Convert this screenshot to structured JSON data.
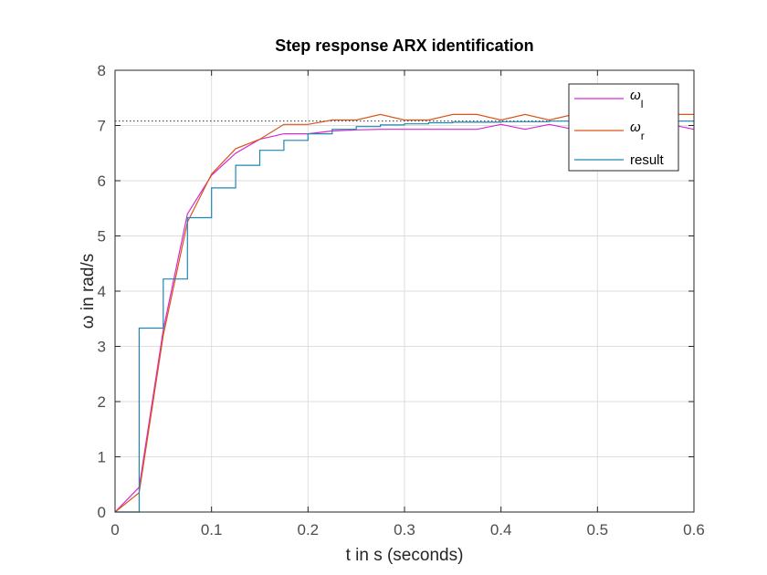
{
  "chart_data": {
    "type": "line",
    "title": "Step response ARX identification",
    "xlabel": "t in s (seconds)",
    "ylabel": "ω in rad/s",
    "xlim": [
      0,
      0.6
    ],
    "ylim": [
      0,
      8
    ],
    "xticks": [
      0,
      0.1,
      0.2,
      0.3,
      0.4,
      0.5,
      0.6
    ],
    "xtick_labels": [
      "0",
      "0.1",
      "0.2",
      "0.3",
      "0.4",
      "0.5",
      "0.6"
    ],
    "yticks": [
      0,
      1,
      2,
      3,
      4,
      5,
      6,
      7,
      8
    ],
    "ytick_labels": [
      "0",
      "1",
      "2",
      "3",
      "4",
      "5",
      "6",
      "7",
      "8"
    ],
    "grid": true,
    "legend_position": "top-right",
    "reference_line": {
      "y": 7.08,
      "style": "dotted",
      "color": "#333333"
    },
    "series": [
      {
        "name": "ω_l",
        "label_main": "ω",
        "label_sub": "l",
        "color": "#d62ad0",
        "style": "line",
        "x": [
          0,
          0.025,
          0.05,
          0.075,
          0.1,
          0.125,
          0.15,
          0.175,
          0.2,
          0.225,
          0.25,
          0.275,
          0.3,
          0.325,
          0.35,
          0.375,
          0.4,
          0.425,
          0.45,
          0.475,
          0.5,
          0.525,
          0.55,
          0.575,
          0.6
        ],
        "y": [
          0,
          0.45,
          3.3,
          5.4,
          6.1,
          6.5,
          6.75,
          6.85,
          6.85,
          6.9,
          6.92,
          6.93,
          6.93,
          6.93,
          6.93,
          6.93,
          7.02,
          6.93,
          7.02,
          6.93,
          6.98,
          6.98,
          7.0,
          7.02,
          6.93
        ]
      },
      {
        "name": "ω_r",
        "label_main": "ω",
        "label_sub": "r",
        "color": "#d9541a",
        "style": "line",
        "x": [
          0,
          0.025,
          0.05,
          0.075,
          0.1,
          0.125,
          0.15,
          0.175,
          0.2,
          0.225,
          0.25,
          0.275,
          0.3,
          0.325,
          0.35,
          0.375,
          0.4,
          0.425,
          0.45,
          0.475,
          0.5,
          0.525,
          0.55,
          0.575,
          0.6
        ],
        "y": [
          0,
          0.35,
          3.2,
          5.25,
          6.12,
          6.58,
          6.75,
          7.02,
          7.02,
          7.1,
          7.1,
          7.2,
          7.1,
          7.1,
          7.2,
          7.2,
          7.1,
          7.2,
          7.1,
          7.2,
          7.2,
          7.2,
          7.2,
          7.2,
          7.2
        ]
      },
      {
        "name": "result",
        "label_main": "result",
        "label_sub": "",
        "color": "#1f87b3",
        "style": "stairs",
        "x": [
          0,
          0.025,
          0.05,
          0.075,
          0.1,
          0.125,
          0.15,
          0.175,
          0.2,
          0.225,
          0.25,
          0.275,
          0.3,
          0.325,
          0.35,
          0.375,
          0.4,
          0.425,
          0.45,
          0.475,
          0.5,
          0.525,
          0.55,
          0.575,
          0.6
        ],
        "y": [
          0,
          3.33,
          4.22,
          5.33,
          5.87,
          6.28,
          6.55,
          6.73,
          6.85,
          6.93,
          6.98,
          7.01,
          7.03,
          7.05,
          7.06,
          7.06,
          7.07,
          7.07,
          7.08,
          7.08,
          7.08,
          7.08,
          7.08,
          7.08,
          7.08
        ]
      }
    ]
  }
}
